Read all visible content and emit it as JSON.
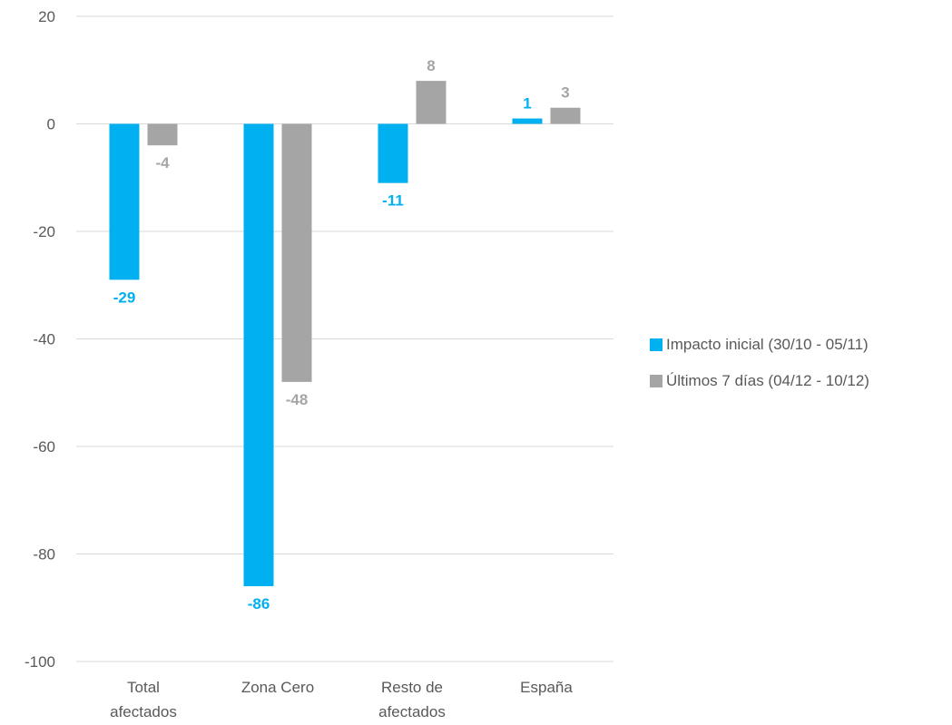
{
  "chart_data": {
    "type": "bar",
    "categories": [
      [
        "Total",
        "afectados"
      ],
      [
        "Zona Cero"
      ],
      [
        "Resto de",
        "afectados"
      ],
      [
        "España"
      ]
    ],
    "series": [
      {
        "name": "Impacto inicial (30/10 - 05/11)",
        "color": "#00B0F0",
        "values": [
          -29,
          -86,
          -11,
          1
        ],
        "labels": [
          "-29",
          "-86",
          "-11",
          "1"
        ]
      },
      {
        "name": "Últimos 7 días (04/12 - 10/12)",
        "color": "#A5A5A5",
        "values": [
          -4,
          -48,
          8,
          3
        ],
        "labels": [
          "-4",
          "-48",
          "8",
          "3"
        ]
      }
    ],
    "ylim": [
      -100,
      20
    ],
    "yticks": [
      "20",
      "0",
      "-20",
      "-40",
      "-60",
      "-80",
      "-100"
    ],
    "grid": true,
    "legend_position": "right"
  }
}
